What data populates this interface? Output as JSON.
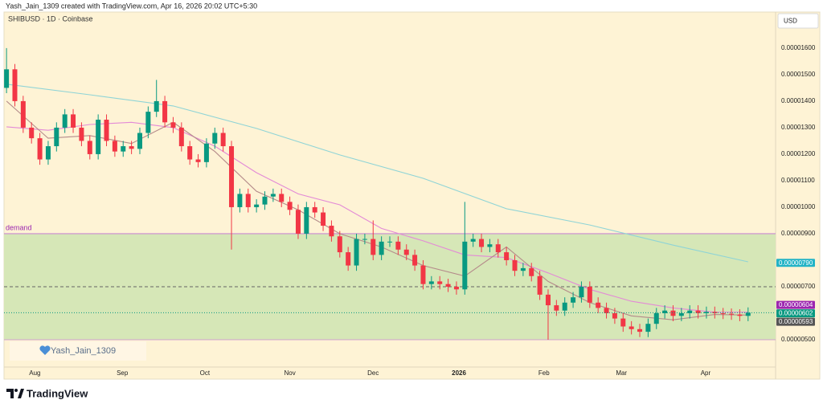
{
  "header": {
    "caption": "Yash_Jain_1309 created with TradingView.com, Apr 16, 2026 20:02 UTC+5:30"
  },
  "chart_data": {
    "type": "candlestick",
    "title": "SHIBUSD · 1D · Coinbase",
    "currency": "USD",
    "xlim": [
      -0.3,
      92.3
    ],
    "xticks": [
      {
        "value": 3.4,
        "label": "Aug"
      },
      {
        "value": 13.9,
        "label": "Sep"
      },
      {
        "value": 23.8,
        "label": "Oct"
      },
      {
        "value": 34.0,
        "label": "Nov"
      },
      {
        "value": 44.0,
        "label": "Dec"
      },
      {
        "value": 54.3,
        "label": "2026"
      },
      {
        "value": 64.5,
        "label": "Feb"
      },
      {
        "value": 73.8,
        "label": "Mar"
      },
      {
        "value": 83.9,
        "label": "Apr"
      }
    ],
    "ylim": [
      3.97e-06,
      1.736e-05
    ],
    "yticks": [
      {
        "value": 1.6e-05,
        "label": "0.00001600"
      },
      {
        "value": 1.5e-05,
        "label": "0.00001500"
      },
      {
        "value": 1.4e-05,
        "label": "0.00001400"
      },
      {
        "value": 1.3e-05,
        "label": "0.00001300"
      },
      {
        "value": 1.2e-05,
        "label": "0.00001200"
      },
      {
        "value": 1.1e-05,
        "label": "0.00001100"
      },
      {
        "value": 1e-05,
        "label": "0.00001000"
      },
      {
        "value": 9e-06,
        "label": "0.00000900"
      },
      {
        "value": 7e-06,
        "label": "0.00000700"
      },
      {
        "value": 5e-06,
        "label": "0.00000500"
      }
    ],
    "grid": false,
    "up_color": "#089981",
    "down_color": "#f23645",
    "open": [
      1.45e-05,
      1.52e-05,
      1.4e-05,
      1.3e-05,
      1.26e-05,
      1.18e-05,
      1.23e-05,
      1.3e-05,
      1.35e-05,
      1.3e-05,
      1.25e-05,
      1.2e-05,
      1.33e-05,
      1.25e-05,
      1.21e-05,
      1.23e-05,
      1.22e-05,
      1.28e-05,
      1.36e-05,
      1.4e-05,
      1.32e-05,
      1.3e-05,
      1.23e-05,
      1.18e-05,
      1.17e-05,
      1.24e-05,
      1.28e-05,
      1.23e-05,
      1e-05,
      1.05e-05,
      1e-05,
      1.01e-05,
      1.04e-05,
      1.05e-05,
      1.02e-05,
      9.9e-06,
      9e-06,
      1e-05,
      9.8e-06,
      9.3e-06,
      8.9e-06,
      8.3e-06,
      7.8e-06,
      8.8e-06,
      8.8e-06,
      8.2e-06,
      8.7e-06,
      8.7e-06,
      8.4e-06,
      8.2e-06,
      7.8e-06,
      7.1e-06,
      7.2e-06,
      7.1e-06,
      7e-06,
      6.9e-06,
      8.7e-06,
      8.8e-06,
      8.5e-06,
      8.6e-06,
      8.3e-06,
      8e-06,
      7.6e-06,
      7.7e-06,
      7.4e-06,
      6.7e-06,
      6.3e-06,
      6.1e-06,
      6.4e-06,
      6.6e-06,
      7e-06,
      6.4e-06,
      6.2e-06,
      6e-06,
      5.8e-06,
      5.5e-06,
      5.4e-06,
      5.3e-06,
      5.6e-06,
      6e-06,
      6.1e-06,
      5.9e-06,
      6e-06,
      6.1e-06,
      6e-06,
      6.05e-06,
      6e-06,
      5.98e-06,
      5.95e-06,
      5.9e-06
    ],
    "high": [
      1.6e-05,
      1.54e-05,
      1.42e-05,
      1.32e-05,
      1.28e-05,
      1.25e-05,
      1.32e-05,
      1.37e-05,
      1.37e-05,
      1.32e-05,
      1.27e-05,
      1.35e-05,
      1.35e-05,
      1.27e-05,
      1.25e-05,
      1.25e-05,
      1.3e-05,
      1.38e-05,
      1.48e-05,
      1.42e-05,
      1.34e-05,
      1.32e-05,
      1.25e-05,
      1.2e-05,
      1.26e-05,
      1.3e-05,
      1.3e-05,
      1.25e-05,
      1.07e-05,
      1.07e-05,
      1.03e-05,
      1.06e-05,
      1.07e-05,
      1.07e-05,
      1.04e-05,
      1.01e-05,
      1.02e-05,
      1.02e-05,
      1e-05,
      9.5e-06,
      9.1e-06,
      8.5e-06,
      9e-06,
      9e-06,
      9.5e-06,
      8.9e-06,
      8.9e-06,
      8.9e-06,
      8.6e-06,
      8.4e-06,
      8e-06,
      7.4e-06,
      7.4e-06,
      7.3e-06,
      7.2e-06,
      1.02e-05,
      9e-06,
      9e-06,
      8.8e-06,
      8.8e-06,
      8.5e-06,
      8.2e-06,
      7.9e-06,
      7.9e-06,
      7.6e-06,
      6.9e-06,
      6.5e-06,
      6.6e-06,
      6.8e-06,
      7.2e-06,
      7.2e-06,
      6.6e-06,
      6.4e-06,
      6.2e-06,
      6e-06,
      5.7e-06,
      5.6e-06,
      5.8e-06,
      6.2e-06,
      6.3e-06,
      6.3e-06,
      6.2e-06,
      6.3e-06,
      6.3e-06,
      6.25e-06,
      6.25e-06,
      6.2e-06,
      6.18e-06,
      6.15e-06,
      6.22e-06
    ],
    "low": [
      1.43e-05,
      1.38e-05,
      1.28e-05,
      1.24e-05,
      1.16e-05,
      1.16e-05,
      1.21e-05,
      1.28e-05,
      1.28e-05,
      1.23e-05,
      1.18e-05,
      1.18e-05,
      1.23e-05,
      1.19e-05,
      1.19e-05,
      1.2e-05,
      1.2e-05,
      1.26e-05,
      1.34e-05,
      1.3e-05,
      1.28e-05,
      1.21e-05,
      1.16e-05,
      1.15e-05,
      1.15e-05,
      1.22e-05,
      1.21e-05,
      8.4e-06,
      9.8e-06,
      9.8e-06,
      9.8e-06,
      9.9e-06,
      1.02e-05,
      1e-05,
      9.7e-06,
      8.8e-06,
      8.8e-06,
      9.6e-06,
      9.1e-06,
      8.7e-06,
      8.1e-06,
      7.6e-06,
      7.6e-06,
      8.6e-06,
      8e-06,
      8e-06,
      8.5e-06,
      8.2e-06,
      8e-06,
      7.6e-06,
      6.9e-06,
      6.9e-06,
      6.9e-06,
      6.8e-06,
      6.7e-06,
      6.7e-06,
      8.5e-06,
      8.3e-06,
      8.3e-06,
      8.1e-06,
      7.8e-06,
      7.4e-06,
      7.4e-06,
      7.2e-06,
      6.5e-06,
      5e-06,
      5.9e-06,
      5.9e-06,
      6.2e-06,
      6.4e-06,
      6.2e-06,
      6e-06,
      5.8e-06,
      5.6e-06,
      5.3e-06,
      5.2e-06,
      5.1e-06,
      5.1e-06,
      5.4e-06,
      5.8e-06,
      5.7e-06,
      5.7e-06,
      5.8e-06,
      5.8e-06,
      5.8e-06,
      5.8e-06,
      5.78e-06,
      5.75e-06,
      5.7e-06,
      5.7e-06
    ],
    "close": [
      1.52e-05,
      1.4e-05,
      1.3e-05,
      1.26e-05,
      1.18e-05,
      1.23e-05,
      1.3e-05,
      1.35e-05,
      1.3e-05,
      1.25e-05,
      1.2e-05,
      1.33e-05,
      1.25e-05,
      1.21e-05,
      1.23e-05,
      1.22e-05,
      1.28e-05,
      1.36e-05,
      1.4e-05,
      1.32e-05,
      1.3e-05,
      1.23e-05,
      1.18e-05,
      1.17e-05,
      1.24e-05,
      1.28e-05,
      1.23e-05,
      1e-05,
      1.05e-05,
      1e-05,
      1.01e-05,
      1.04e-05,
      1.05e-05,
      1.02e-05,
      9.9e-06,
      9e-06,
      1e-05,
      9.8e-06,
      9.3e-06,
      8.9e-06,
      8.3e-06,
      7.8e-06,
      8.8e-06,
      8.8e-06,
      8.2e-06,
      8.7e-06,
      8.7e-06,
      8.4e-06,
      8.2e-06,
      7.8e-06,
      7.1e-06,
      7.2e-06,
      7.1e-06,
      7e-06,
      6.9e-06,
      8.7e-06,
      8.8e-06,
      8.5e-06,
      8.6e-06,
      8.3e-06,
      8e-06,
      7.6e-06,
      7.7e-06,
      7.4e-06,
      6.7e-06,
      6.3e-06,
      6.1e-06,
      6.4e-06,
      6.6e-06,
      7e-06,
      6.4e-06,
      6.2e-06,
      6e-06,
      5.8e-06,
      5.5e-06,
      5.4e-06,
      5.3e-06,
      5.6e-06,
      6e-06,
      6.1e-06,
      5.9e-06,
      6e-06,
      6.1e-06,
      6e-06,
      6.05e-06,
      6e-06,
      5.98e-06,
      5.95e-06,
      5.9e-06,
      6.02e-06
    ],
    "overlays": [
      {
        "color": "#8fd4d6",
        "x": [
          0,
          10,
          20,
          30,
          40,
          50,
          60,
          70,
          80,
          89
        ],
        "values": [
          1.464e-05,
          1.424e-05,
          1.382e-05,
          1.297e-05,
          1.197e-05,
          1.109e-05,
          9.94e-06,
          9.33e-06,
          8.57e-06,
          7.94e-06
        ]
      },
      {
        "color": "#e38ad6",
        "x": [
          0,
          5,
          10,
          15,
          20,
          25,
          30,
          35,
          40,
          45,
          50,
          55,
          60,
          65,
          70,
          75,
          80,
          85,
          89
        ],
        "values": [
          1.303e-05,
          1.29e-05,
          1.312e-05,
          1.32e-05,
          1.3e-05,
          1.23e-05,
          1.13e-05,
          1.05e-05,
          1.009e-05,
          9.2e-06,
          8.73e-06,
          8.2e-06,
          8.1e-06,
          7.52e-06,
          6.9e-06,
          6.45e-06,
          6.2e-06,
          6.04e-06,
          6.04e-06
        ]
      },
      {
        "color": "#b48a8a",
        "x": [
          0,
          5,
          10,
          15,
          20,
          25,
          30,
          35,
          40,
          45,
          50,
          55,
          60,
          65,
          70,
          75,
          80,
          85,
          89
        ],
        "values": [
          1.4e-05,
          1.26e-05,
          1.27e-05,
          1.24e-05,
          1.32e-05,
          1.21e-05,
          1.06e-05,
          9.9e-06,
          9e-06,
          8.5e-06,
          7.8e-06,
          7.4e-06,
          8.5e-06,
          7.2e-06,
          6.4e-06,
          5.9e-06,
          5.75e-06,
          5.95e-06,
          5.93e-06
        ]
      }
    ],
    "zone": {
      "range": [
        5e-06,
        9e-06
      ],
      "label": "demand",
      "color": "#d6e7b7",
      "line_color": "#c98ad0"
    },
    "levels": [
      {
        "value": 7e-06,
        "style": "dashed",
        "color": "#666666"
      }
    ],
    "price_labels": [
      {
        "value": 7.9e-06,
        "label": "0.00000790",
        "color": "#22b3c6"
      },
      {
        "value": 6.04e-06,
        "label": "0.00000604",
        "color": "#9c27b0"
      },
      {
        "value": 6.02e-06,
        "label": "0.00000602",
        "color": "#089981",
        "line": "dotted"
      },
      {
        "value": 5.93e-06,
        "label": "0.00000593",
        "color": "#555555"
      }
    ]
  },
  "watermark": {
    "text": "Yash_Jain_1309"
  },
  "footer": {
    "brand": "TradingView"
  }
}
